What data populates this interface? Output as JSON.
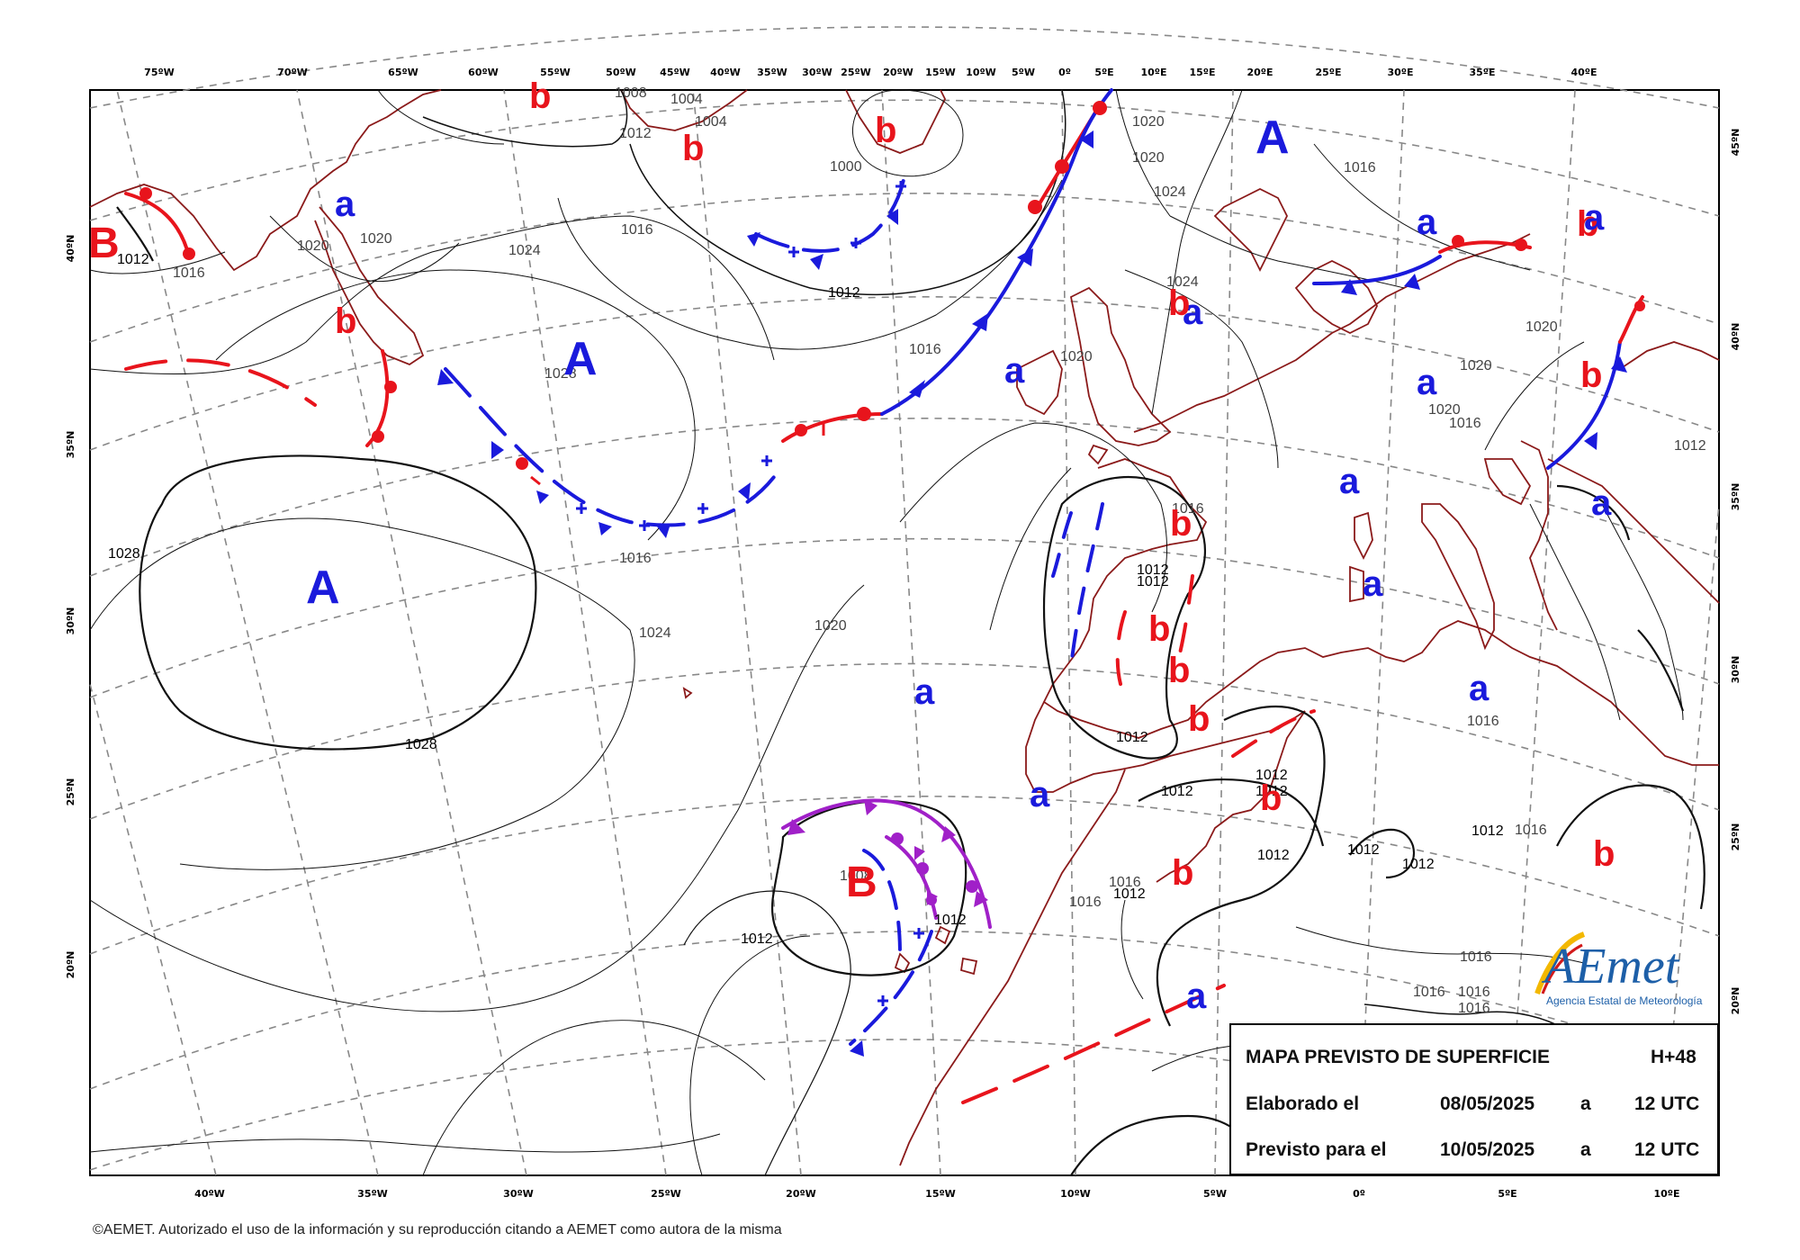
{
  "map": {
    "title": "MAPA PREVISTO DE SUPERFICIE",
    "forecast_hour": "H+48",
    "elaborated_label": "Elaborado el",
    "elaborated_date": "08/05/2025",
    "elaborated_at": "a",
    "elaborated_time": "12 UTC",
    "valid_label": "Previsto para el",
    "valid_date": "10/05/2025",
    "valid_at": "a",
    "valid_time": "12 UTC"
  },
  "copyright": "©AEMET. Autorizado el uso de la información y su reproducción citando a AEMET como autora de la misma",
  "logo": {
    "mark": "AEmet",
    "name": "Agencia Estatal de Meteorología"
  },
  "top_ticks": [
    "75ºW",
    "70ºW",
    "65ºW",
    "60ºW",
    "55ºW",
    "50ºW",
    "45ºW",
    "40ºW",
    "35ºW",
    "30ºW",
    "25ºW",
    "20ºW",
    "15ºW",
    "10ºW",
    "5ºW",
    "0º",
    "5ºE",
    "10ºE",
    "15ºE",
    "20ºE",
    "25ºE",
    "30ºE",
    "35ºE",
    "40ºE"
  ],
  "bottom_ticks": [
    "40ºW",
    "35ºW",
    "30ºW",
    "25ºW",
    "20ºW",
    "15ºW",
    "10ºW",
    "5ºW",
    "0º",
    "5ºE",
    "10ºE"
  ],
  "left_ticks": [
    "40ºN",
    "35ºN",
    "30ºN",
    "25ºN",
    "20ºN"
  ],
  "right_ticks": [
    "45ºN",
    "40ºN",
    "35ºN",
    "30ºN",
    "25ºN",
    "20ºN"
  ],
  "pressure_systems": [
    {
      "label": "B",
      "color": "#e8141c"
    },
    {
      "label": "a",
      "color": "#1a1adc"
    },
    {
      "label": "b",
      "color": "#e8141c"
    },
    {
      "label": "b",
      "color": "#e8141c"
    },
    {
      "label": "A",
      "color": "#1a1adc"
    },
    {
      "label": "A",
      "color": "#1a1adc"
    },
    {
      "label": "b",
      "color": "#e8141c"
    },
    {
      "label": "b",
      "color": "#e8141c"
    },
    {
      "label": "b",
      "color": "#e8141c"
    },
    {
      "label": "A",
      "color": "#1a1adc"
    },
    {
      "label": "a",
      "color": "#1a1adc"
    },
    {
      "label": "a",
      "color": "#1a1adc"
    },
    {
      "label": "b",
      "color": "#e8141c"
    },
    {
      "label": "a",
      "color": "#1a1adc"
    },
    {
      "label": "a",
      "color": "#1a1adc"
    },
    {
      "label": "b",
      "color": "#e8141c"
    },
    {
      "label": "b",
      "color": "#e8141c"
    },
    {
      "label": "a",
      "color": "#1a1adc"
    },
    {
      "label": "a",
      "color": "#1a1adc"
    },
    {
      "label": "b",
      "color": "#e8141c"
    },
    {
      "label": "b",
      "color": "#e8141c"
    },
    {
      "label": "b",
      "color": "#e8141c"
    },
    {
      "label": "a",
      "color": "#1a1adc"
    },
    {
      "label": "a",
      "color": "#1a1adc"
    },
    {
      "label": "a",
      "color": "#1a1adc"
    },
    {
      "label": "b",
      "color": "#e8141c"
    },
    {
      "label": "a",
      "color": "#1a1adc"
    },
    {
      "label": "b",
      "color": "#e8141c"
    },
    {
      "label": "B",
      "color": "#e8141c"
    },
    {
      "label": "a",
      "color": "#1a1adc"
    },
    {
      "label": "a",
      "color": "#1a1adc"
    },
    {
      "label": "b",
      "color": "#e8141c"
    }
  ],
  "isobar_labels": [
    "1012",
    "1016",
    "1020",
    "1020",
    "1024",
    "1028",
    "1016",
    "1028",
    "1028",
    "1024",
    "1020",
    "1016",
    "1008",
    "1012",
    "1004",
    "1004",
    "1000",
    "1012",
    "1016",
    "1020",
    "1020",
    "1020",
    "1024",
    "1024",
    "1016",
    "1016",
    "1020",
    "1020",
    "1020",
    "1016",
    "1012",
    "1012",
    "1012",
    "1012",
    "1012",
    "1012",
    "1012",
    "1012",
    "1012",
    "1012",
    "1016",
    "1016",
    "1016",
    "1012",
    "1012",
    "1008",
    "1012",
    "1012",
    "1016",
    "1016",
    "1016",
    "1016",
    "1016"
  ]
}
